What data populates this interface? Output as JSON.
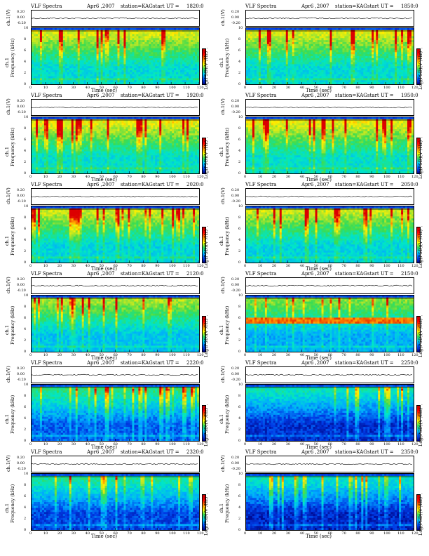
{
  "figure": {
    "panel_title": "VLF Spectra",
    "date": "Apr6 ,2007",
    "station": "station=KAG",
    "start_prefix": "start  UT  =",
    "ts_ylabel": "ch.1(V)",
    "ts_ticks": [
      "0.20",
      "0.00",
      "-0.20"
    ],
    "spec_ylabel_line1": "ch.1",
    "spec_ylabel_line2": "Frequency  (kHz)",
    "spec_yticks": [
      "10",
      "8",
      "6",
      "4",
      "2",
      "0"
    ],
    "colorbar_label": "Log(PSD)(V²/Hz)",
    "colorbar_ticks": [
      "-",
      "-"
    ],
    "xlabel": "Time  (sec)",
    "xticks": [
      "0",
      "10",
      "20",
      "30",
      "40",
      "50",
      "60",
      "70",
      "80",
      "90",
      "100",
      "110",
      "120"
    ],
    "colors": {
      "low": "#000080",
      "mid": "#30e060",
      "high": "#ff0000"
    }
  },
  "chart_data": [
    {
      "type": "heatmap",
      "start_ut": "1820:0",
      "xlim": [
        0,
        120
      ],
      "ylim": [
        0,
        10
      ],
      "xlabel": "Time  (sec)",
      "ylabel": "Frequency  (kHz)",
      "band_top_khz": 9.5,
      "overall_level": 0.72,
      "hot_band_khz": null
    },
    {
      "type": "heatmap",
      "start_ut": "1850:0",
      "xlim": [
        0,
        120
      ],
      "ylim": [
        0,
        10
      ],
      "xlabel": "Time  (sec)",
      "ylabel": "Frequency  (kHz)",
      "band_top_khz": 9.5,
      "overall_level": 0.72,
      "hot_band_khz": null
    },
    {
      "type": "heatmap",
      "start_ut": "1920:0",
      "xlim": [
        0,
        120
      ],
      "ylim": [
        0,
        10
      ],
      "xlabel": "Time  (sec)",
      "ylabel": "Frequency  (kHz)",
      "band_top_khz": 9.5,
      "overall_level": 0.74,
      "hot_band_khz": null
    },
    {
      "type": "heatmap",
      "start_ut": "1950:0",
      "xlim": [
        0,
        120
      ],
      "ylim": [
        0,
        10
      ],
      "xlabel": "Time  (sec)",
      "ylabel": "Frequency  (kHz)",
      "band_top_khz": 9.5,
      "overall_level": 0.74,
      "hot_band_khz": null
    },
    {
      "type": "heatmap",
      "start_ut": "2020:0",
      "xlim": [
        0,
        120
      ],
      "ylim": [
        0,
        10
      ],
      "xlabel": "Time  (sec)",
      "ylabel": "Frequency  (kHz)",
      "band_top_khz": 9.5,
      "overall_level": 0.7,
      "hot_band_khz": null
    },
    {
      "type": "heatmap",
      "start_ut": "2050:0",
      "xlim": [
        0,
        120
      ],
      "ylim": [
        0,
        10
      ],
      "xlabel": "Time  (sec)",
      "ylabel": "Frequency  (kHz)",
      "band_top_khz": 9.5,
      "overall_level": 0.7,
      "hot_band_khz": null
    },
    {
      "type": "heatmap",
      "start_ut": "2120:0",
      "xlim": [
        0,
        120
      ],
      "ylim": [
        0,
        10
      ],
      "xlabel": "Time  (sec)",
      "ylabel": "Frequency  (kHz)",
      "band_top_khz": 9.5,
      "overall_level": 0.66,
      "hot_band_khz": null
    },
    {
      "type": "heatmap",
      "start_ut": "2150:0",
      "xlim": [
        0,
        120
      ],
      "ylim": [
        0,
        10
      ],
      "xlabel": "Time  (sec)",
      "ylabel": "Frequency  (kHz)",
      "band_top_khz": 9.5,
      "overall_level": 0.62,
      "hot_band_khz": 5.5
    },
    {
      "type": "heatmap",
      "start_ut": "2220:0",
      "xlim": [
        0,
        120
      ],
      "ylim": [
        0,
        10
      ],
      "xlabel": "Time  (sec)",
      "ylabel": "Frequency  (kHz)",
      "band_top_khz": 9.5,
      "overall_level": 0.5,
      "hot_band_khz": null
    },
    {
      "type": "heatmap",
      "start_ut": "2250:0",
      "xlim": [
        0,
        120
      ],
      "ylim": [
        0,
        10
      ],
      "xlabel": "Time  (sec)",
      "ylabel": "Frequency  (kHz)",
      "band_top_khz": 9.5,
      "overall_level": 0.42,
      "hot_band_khz": null
    },
    {
      "type": "heatmap",
      "start_ut": "2320:0",
      "xlim": [
        0,
        120
      ],
      "ylim": [
        0,
        10
      ],
      "xlabel": "Time  (sec)",
      "ylabel": "Frequency  (kHz)",
      "band_top_khz": 9.5,
      "overall_level": 0.46,
      "hot_band_khz": null
    },
    {
      "type": "heatmap",
      "start_ut": "2350:0",
      "xlim": [
        0,
        120
      ],
      "ylim": [
        0,
        10
      ],
      "xlabel": "Time  (sec)",
      "ylabel": "Frequency  (kHz)",
      "band_top_khz": 9.5,
      "overall_level": 0.4,
      "hot_band_khz": null
    }
  ]
}
